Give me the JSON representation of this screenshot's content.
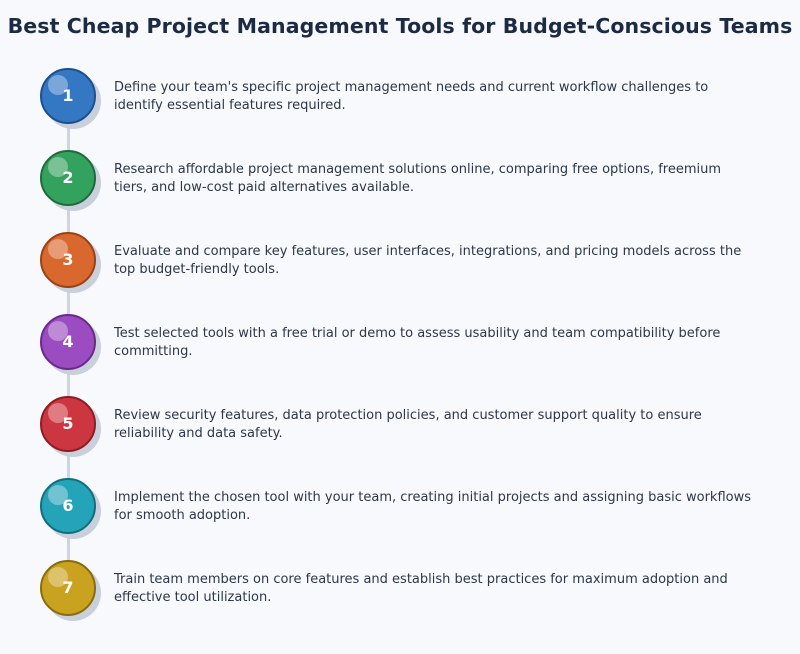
{
  "title": "Best Cheap Project Management Tools for Budget-Conscious Teams",
  "steps": [
    {
      "number": "1",
      "color": "#3478c4",
      "border": "#1d4f8f",
      "text": "Define your team's specific project management needs and current workflow challenges to identify essential features required."
    },
    {
      "number": "2",
      "color": "#34a25f",
      "border": "#1f6b3d",
      "text": "Research affordable project management solutions online, comparing free options, freemium tiers, and low-cost paid alternatives available."
    },
    {
      "number": "3",
      "color": "#d8682e",
      "border": "#9a4214",
      "text": "Evaluate and compare key features, user interfaces, integrations, and pricing models across the top budget-friendly tools."
    },
    {
      "number": "4",
      "color": "#9a4cc0",
      "border": "#6a2a8a",
      "text": "Test selected tools with a free trial or demo to assess usability and team compatibility before committing."
    },
    {
      "number": "5",
      "color": "#cc3640",
      "border": "#8e1c24",
      "text": "Review security features, data protection policies, and customer support quality to ensure reliability and data safety."
    },
    {
      "number": "6",
      "color": "#25a3b8",
      "border": "#11707f",
      "text": "Implement the chosen tool with your team, creating initial projects and assigning basic workflows for smooth adoption."
    },
    {
      "number": "7",
      "color": "#c9a21f",
      "border": "#8a6c0c",
      "text": "Train team members on core features and establish best practices for maximum adoption and effective tool utilization."
    }
  ]
}
